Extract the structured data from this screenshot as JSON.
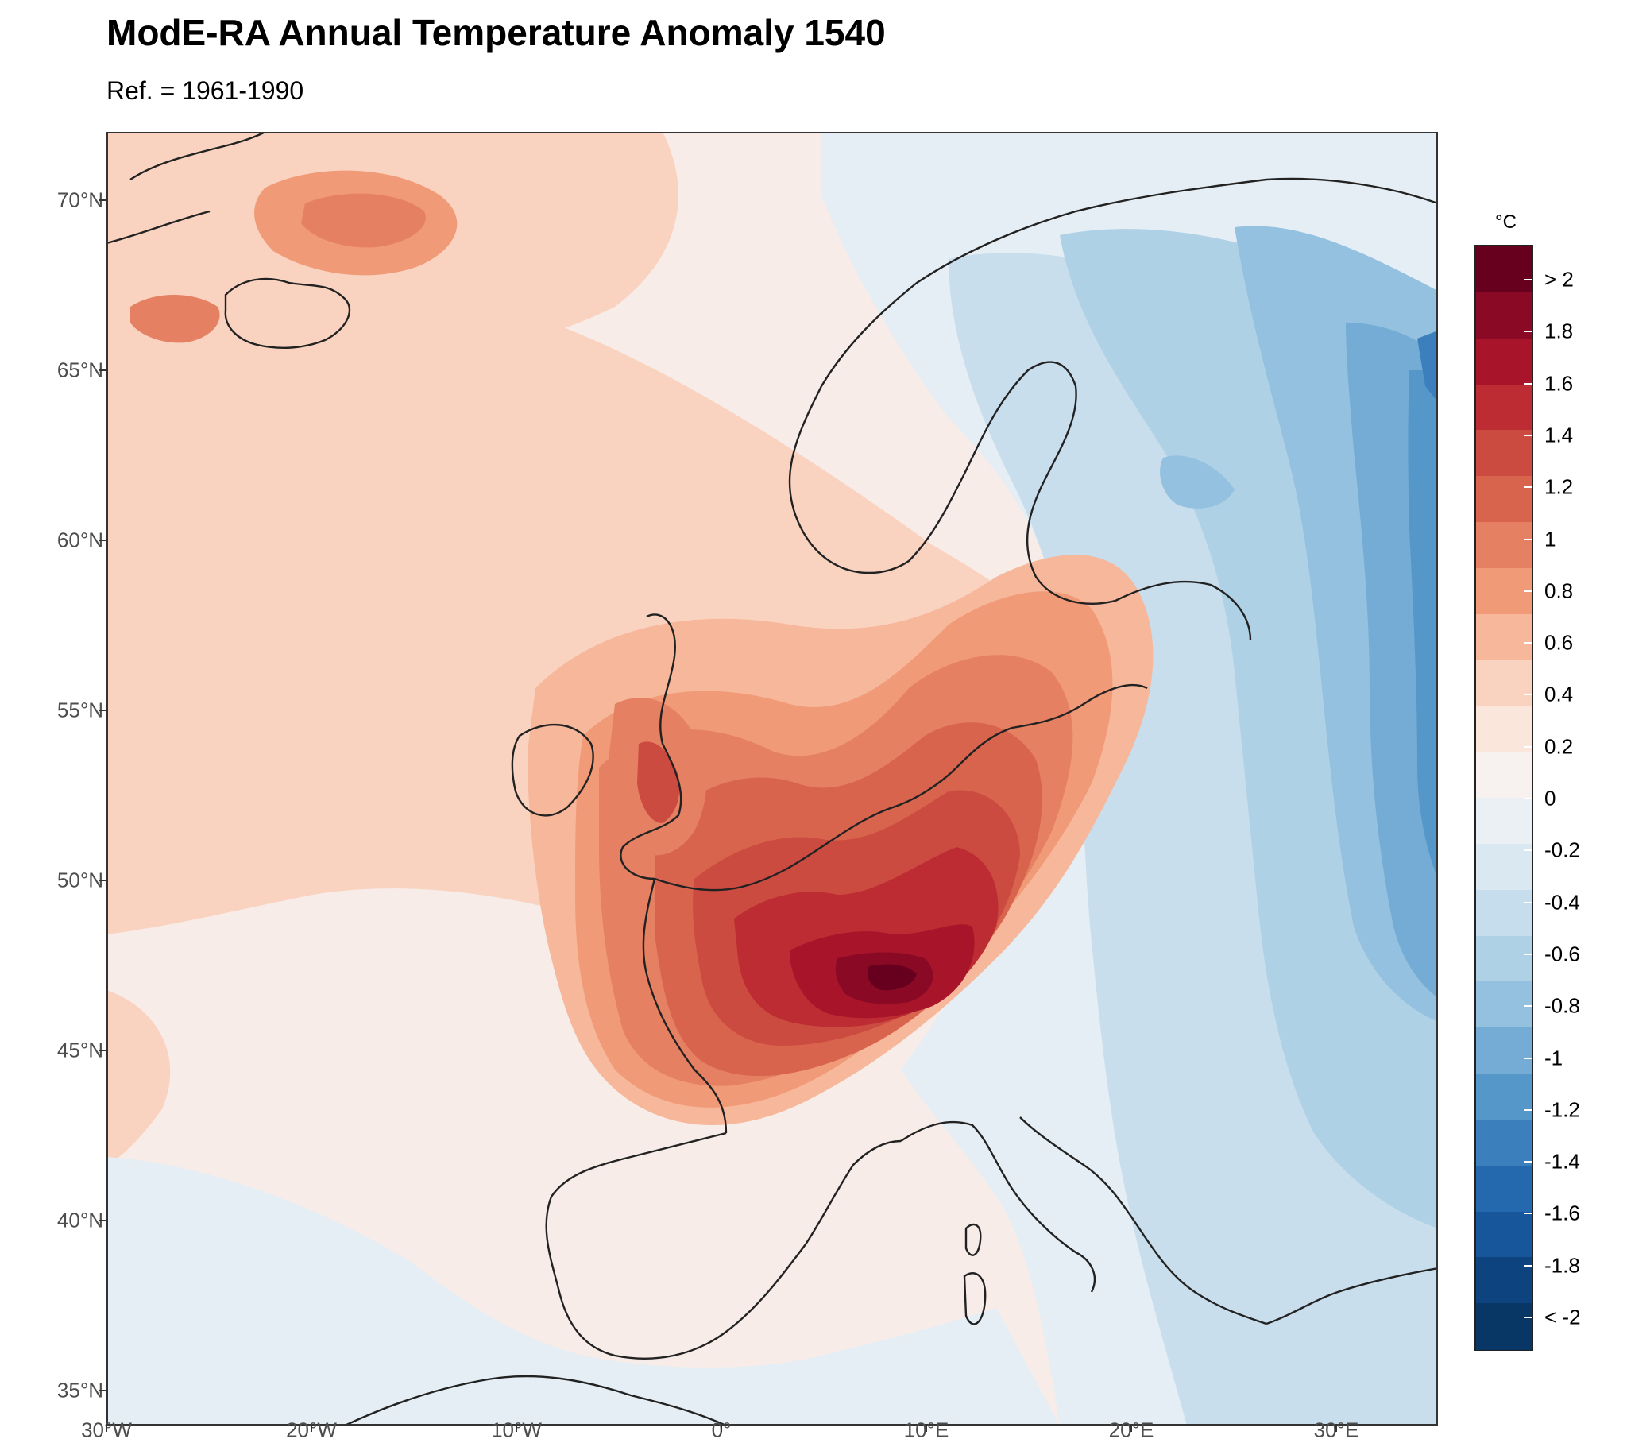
{
  "title": "ModE-RA Annual Temperature Anomaly 1540",
  "subtitle": "Ref. = 1961-1990",
  "map": {
    "extent": {
      "lon": [
        -30,
        35
      ],
      "lat": [
        34,
        72
      ]
    },
    "projection": "equirectangular",
    "lat_ticks": [
      "70°N",
      "65°N",
      "60°N",
      "55°N",
      "50°N",
      "45°N",
      "40°N",
      "35°N"
    ],
    "lon_ticks": [
      "30°W",
      "20°W",
      "10°W",
      "0°",
      "10°E",
      "20°E",
      "30°E"
    ],
    "background_anomaly": "0 to 0.2",
    "features": {
      "warm_core": {
        "label": "max anomaly > 2 °C",
        "center": "eastern France / western Germany"
      },
      "cold_core": {
        "label": "min anomaly about -1.6 °C",
        "center": "western Russia"
      },
      "iceland_warm": {
        "label": "about 1 °C",
        "center": "north-west of Iceland"
      }
    }
  },
  "legend": {
    "title": "°C",
    "labels": [
      "> 2",
      "1.8",
      "1.6",
      "1.4",
      "1.2",
      "1",
      "0.8",
      "0.6",
      "0.4",
      "0.2",
      "0",
      "-0.2",
      "-0.4",
      "-0.6",
      "-0.8",
      "-1",
      "-1.2",
      "-1.4",
      "-1.6",
      "-1.8",
      "< -2"
    ],
    "colors": [
      "#67001f",
      "#8a0a25",
      "#a8152b",
      "#bd2c33",
      "#cc4b40",
      "#d9644e",
      "#e58062",
      "#f09a77",
      "#f6b79a",
      "#fad3c0",
      "#fbe6dc",
      "#f7f1ef",
      "#eaf0f4",
      "#d9e8f1",
      "#c5ddec",
      "#afd1e6",
      "#93c1df",
      "#74acd5",
      "#5697ca",
      "#3b80bd",
      "#2469ae",
      "#17569a",
      "#0d4480",
      "#083766"
    ]
  }
}
